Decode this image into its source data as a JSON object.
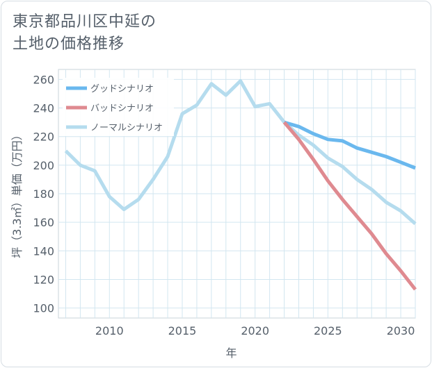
{
  "title": "東京都品川区中延の\n土地の価格推移",
  "chart_data": {
    "type": "line",
    "title": "東京都品川区中延の\n土地の価格推移",
    "xlabel": "年",
    "ylabel": "坪（3.3㎡）単価（万円）",
    "xlim": [
      2006.5,
      2031
    ],
    "ylim": [
      93,
      267
    ],
    "xticks": [
      2010,
      2015,
      2020,
      2025,
      2030
    ],
    "yticks": [
      100,
      120,
      140,
      160,
      180,
      200,
      220,
      240,
      260
    ],
    "grid": true,
    "legend_position": "top-left",
    "series": [
      {
        "name": "グッドシナリオ",
        "color": "#6ab8ee",
        "x": [
          2022,
          2023,
          2024,
          2025,
          2026,
          2027,
          2028,
          2029,
          2030,
          2031
        ],
        "y": [
          230,
          227,
          222,
          218,
          217,
          212,
          209,
          206,
          202,
          198
        ]
      },
      {
        "name": "バッドシナリオ",
        "color": "#df8a90",
        "x": [
          2022,
          2023,
          2024,
          2025,
          2026,
          2027,
          2028,
          2029,
          2030,
          2031
        ],
        "y": [
          230,
          218,
          204,
          189,
          176,
          164,
          152,
          138,
          126,
          113
        ]
      },
      {
        "name": "ノーマルシナリオ",
        "color": "#b5dcee",
        "x": [
          2007,
          2008,
          2009,
          2010,
          2011,
          2012,
          2013,
          2014,
          2015,
          2016,
          2017,
          2018,
          2019,
          2020,
          2021,
          2022,
          2023,
          2024,
          2025,
          2026,
          2027,
          2028,
          2029,
          2030,
          2031
        ],
        "y": [
          210,
          200,
          196,
          178,
          169,
          176,
          190,
          206,
          236,
          242,
          257,
          249,
          259,
          241,
          243,
          230,
          221,
          214,
          205,
          199,
          190,
          183,
          174,
          168,
          159
        ]
      }
    ]
  }
}
